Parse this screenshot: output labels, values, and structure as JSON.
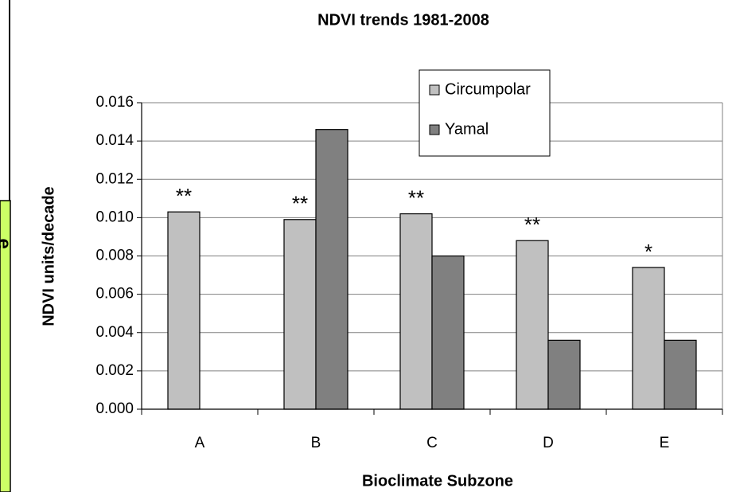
{
  "sidebar_text": "e",
  "chart_data": {
    "type": "bar",
    "title": "NDVI trends 1981-2008",
    "x_label": "Bioclimate Subzone",
    "y_label": "NDVI units/decade",
    "categories": [
      "A",
      "B",
      "C",
      "D",
      "E"
    ],
    "series": [
      {
        "name": "Circumpolar",
        "color": "#c0c0c0",
        "values": [
          0.0103,
          0.0099,
          0.0102,
          0.0088,
          0.0074
        ]
      },
      {
        "name": "Yamal",
        "color": "#808080",
        "values": [
          null,
          0.0146,
          0.008,
          0.0036,
          0.0036
        ]
      }
    ],
    "annotations": [
      "**",
      "**",
      "**",
      "**",
      "*"
    ],
    "ylim": [
      0,
      0.016
    ],
    "yticks": [
      {
        "value": 0,
        "label": "0.000"
      },
      0.002,
      0.004,
      0.006,
      0.008,
      {
        "value": 0.01,
        "label": "0.010"
      },
      0.012,
      0.014,
      0.016
    ],
    "grid": true,
    "legend": "top"
  }
}
